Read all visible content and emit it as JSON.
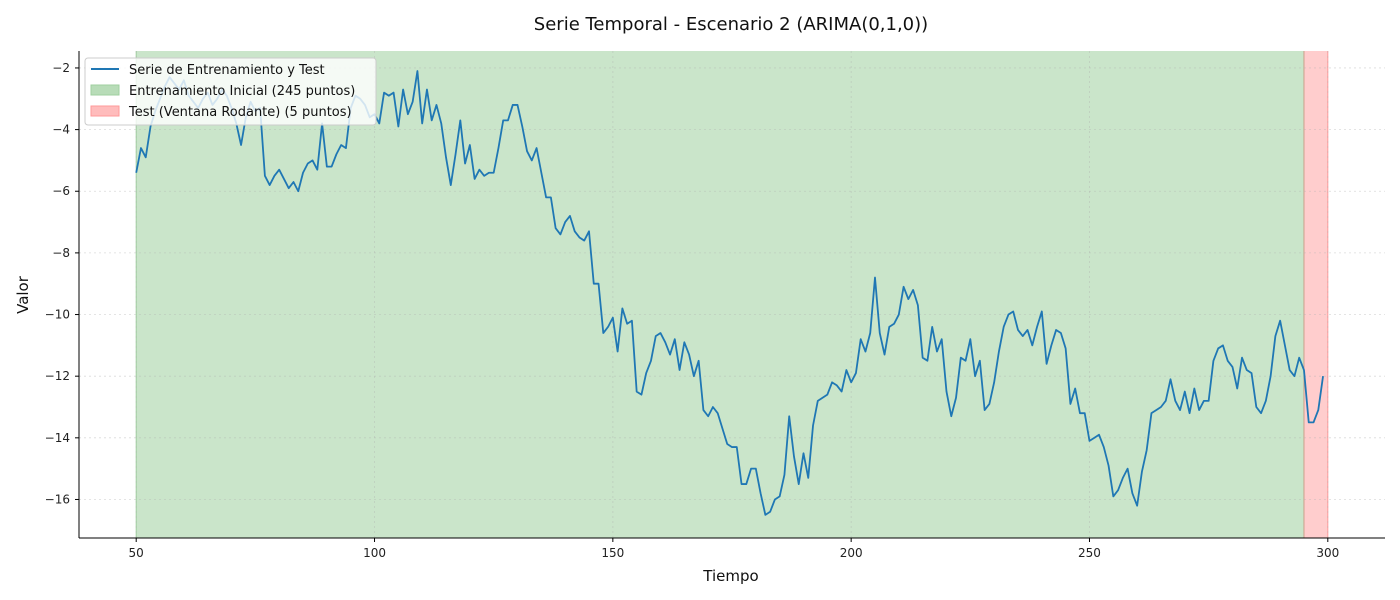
{
  "chart_data": {
    "type": "line",
    "title": "Serie Temporal - Escenario 2 (ARIMA(0,1,0))",
    "xlabel": "Tiempo",
    "ylabel": "Valor",
    "xlim": [
      38,
      312
    ],
    "ylim": [
      -17.25,
      -1.45
    ],
    "xticks": [
      50,
      100,
      150,
      200,
      250,
      300
    ],
    "yticks": [
      -16,
      -14,
      -12,
      -10,
      -8,
      -6,
      -4,
      -2
    ],
    "grid": true,
    "legend_position": "top-left",
    "regions": [
      {
        "name": "Entrenamiento Inicial (245 puntos)",
        "x_start": 50,
        "x_end": 295,
        "color": "#b8dcb8"
      },
      {
        "name": "Test (Ventana Rodante) (5 puntos)",
        "x_start": 295,
        "x_end": 300,
        "color": "#ffbcbc"
      }
    ],
    "series": [
      {
        "name": "Serie de Entrenamiento y Test",
        "color": "#1f77b4",
        "x_start": 50,
        "values": [
          -5.4,
          -4.6,
          -4.9,
          -3.9,
          -3.4,
          -3.0,
          -2.6,
          -2.3,
          -2.5,
          -2.7,
          -2.4,
          -2.9,
          -3.1,
          -3.3,
          -3.0,
          -2.8,
          -3.2,
          -3.0,
          -2.7,
          -2.9,
          -3.3,
          -3.8,
          -4.5,
          -3.6,
          -3.1,
          -3.4,
          -3.3,
          -5.5,
          -5.8,
          -5.5,
          -5.3,
          -5.6,
          -5.9,
          -5.7,
          -6.0,
          -5.4,
          -5.1,
          -5.0,
          -5.3,
          -3.8,
          -5.2,
          -5.2,
          -4.8,
          -4.5,
          -4.6,
          -3.3,
          -2.9,
          -3.0,
          -3.2,
          -3.6,
          -3.5,
          -3.8,
          -2.8,
          -2.9,
          -2.8,
          -3.9,
          -2.7,
          -3.5,
          -3.1,
          -2.1,
          -3.8,
          -2.7,
          -3.7,
          -3.2,
          -3.8,
          -4.9,
          -5.8,
          -4.8,
          -3.7,
          -5.1,
          -4.5,
          -5.6,
          -5.3,
          -5.5,
          -5.4,
          -5.4,
          -4.6,
          -3.7,
          -3.7,
          -3.2,
          -3.2,
          -3.9,
          -4.7,
          -5.0,
          -4.6,
          -5.4,
          -6.2,
          -6.2,
          -7.2,
          -7.4,
          -7.0,
          -6.8,
          -7.3,
          -7.5,
          -7.6,
          -7.3,
          -9.0,
          -9.0,
          -10.6,
          -10.4,
          -10.1,
          -11.2,
          -9.8,
          -10.3,
          -10.2,
          -12.5,
          -12.6,
          -11.9,
          -11.5,
          -10.7,
          -10.6,
          -10.9,
          -11.3,
          -10.8,
          -11.8,
          -10.9,
          -11.3,
          -12.0,
          -11.5,
          -13.1,
          -13.3,
          -13.0,
          -13.2,
          -13.7,
          -14.2,
          -14.3,
          -14.3,
          -15.5,
          -15.5,
          -15.0,
          -15.0,
          -15.8,
          -16.5,
          -16.4,
          -16.0,
          -15.9,
          -15.2,
          -13.3,
          -14.6,
          -15.5,
          -14.5,
          -15.3,
          -13.6,
          -12.8,
          -12.7,
          -12.6,
          -12.2,
          -12.3,
          -12.5,
          -11.8,
          -12.2,
          -11.9,
          -10.8,
          -11.2,
          -10.6,
          -8.8,
          -10.6,
          -11.3,
          -10.4,
          -10.3,
          -10.0,
          -9.1,
          -9.5,
          -9.2,
          -9.7,
          -11.4,
          -11.5,
          -10.4,
          -11.2,
          -10.8,
          -12.5,
          -13.3,
          -12.7,
          -11.4,
          -11.5,
          -10.8,
          -12.0,
          -11.5,
          -13.1,
          -12.9,
          -12.2,
          -11.2,
          -10.4,
          -10.0,
          -9.9,
          -10.5,
          -10.7,
          -10.5,
          -11.0,
          -10.4,
          -9.9,
          -11.6,
          -11.0,
          -10.5,
          -10.6,
          -11.1,
          -12.9,
          -12.4,
          -13.2,
          -13.2,
          -14.1,
          -14.0,
          -13.9,
          -14.3,
          -14.9,
          -15.9,
          -15.7,
          -15.3,
          -15.0,
          -15.8,
          -16.2,
          -15.1,
          -14.4,
          -13.2,
          -13.1,
          -13.0,
          -12.8,
          -12.1,
          -12.8,
          -13.1,
          -12.5,
          -13.2,
          -12.4,
          -13.1,
          -12.8,
          -12.8,
          -11.5,
          -11.1,
          -11.0,
          -11.5,
          -11.7,
          -12.4,
          -11.4,
          -11.8,
          -11.9,
          -13.0,
          -13.2,
          -12.8,
          -12.0,
          -10.7,
          -10.2,
          -11.0,
          -11.8,
          -12.0,
          -11.4,
          -11.8,
          -13.5,
          -13.5,
          -13.1,
          -12.0
        ]
      }
    ]
  }
}
